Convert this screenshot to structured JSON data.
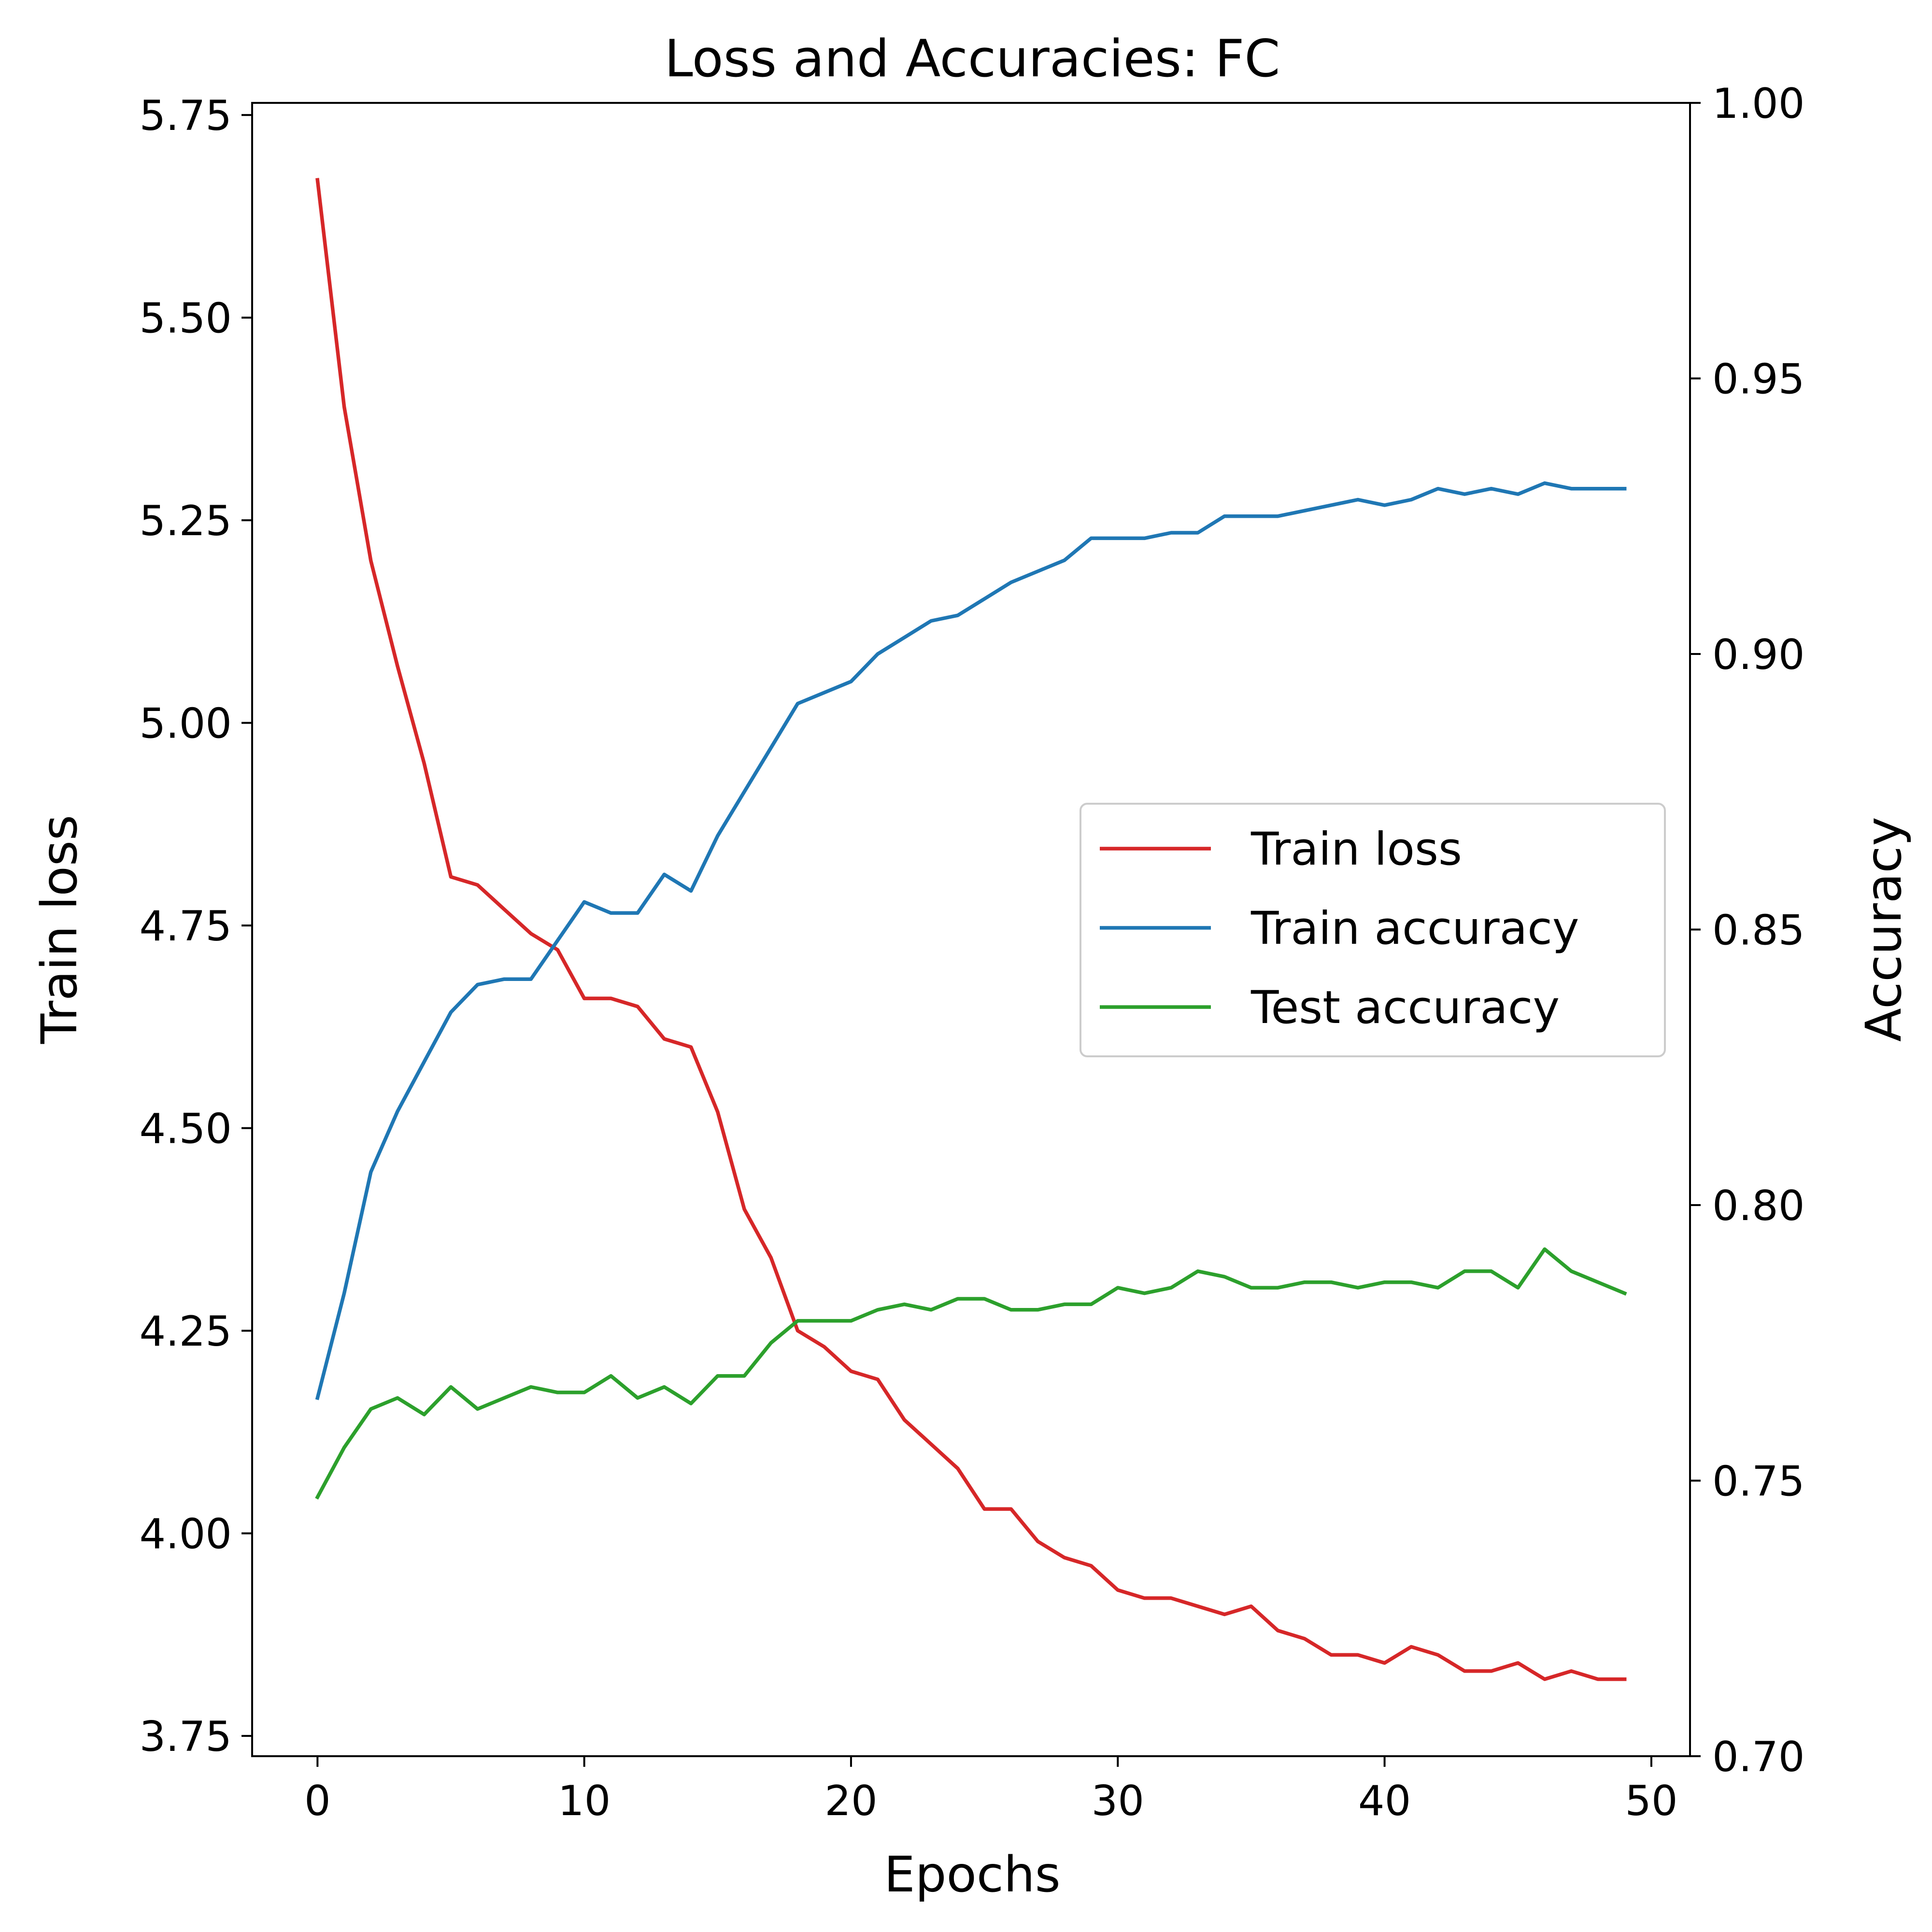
{
  "chart_data": {
    "type": "line",
    "title": "Loss and Accuracies: FC",
    "xlabel": "Epochs",
    "ylabel_left": "Train loss",
    "ylabel_right": "Accuracy",
    "xlim": [
      -2.45,
      51.45
    ],
    "ylim_left": [
      3.725,
      5.765
    ],
    "ylim_right": [
      0.7,
      1.0
    ],
    "x_ticks": [
      0,
      10,
      20,
      30,
      40,
      50
    ],
    "x_tick_labels": [
      "0",
      "10",
      "20",
      "30",
      "40",
      "50"
    ],
    "y_left_ticks": [
      3.75,
      4.0,
      4.25,
      4.5,
      4.75,
      5.0,
      5.25,
      5.5,
      5.75
    ],
    "y_left_tick_labels": [
      "3.75",
      "4.00",
      "4.25",
      "4.50",
      "4.75",
      "5.00",
      "5.25",
      "5.50",
      "5.75"
    ],
    "y_right_ticks": [
      0.7,
      0.75,
      0.8,
      0.85,
      0.9,
      0.95,
      1.0
    ],
    "y_right_tick_labels": [
      "0.70",
      "0.75",
      "0.80",
      "0.85",
      "0.90",
      "0.95",
      "1.00"
    ],
    "grid": false,
    "legend_position": "center-right",
    "x": [
      0,
      1,
      2,
      3,
      4,
      5,
      6,
      7,
      8,
      9,
      10,
      11,
      12,
      13,
      14,
      15,
      16,
      17,
      18,
      19,
      20,
      21,
      22,
      23,
      24,
      25,
      26,
      27,
      28,
      29,
      30,
      31,
      32,
      33,
      34,
      35,
      36,
      37,
      38,
      39,
      40,
      41,
      42,
      43,
      44,
      45,
      46,
      47,
      48,
      49
    ],
    "series": [
      {
        "name": "Train loss",
        "axis": "left",
        "color": "#d62728",
        "values": [
          5.67,
          5.39,
          5.2,
          5.07,
          4.95,
          4.81,
          4.8,
          4.77,
          4.74,
          4.72,
          4.66,
          4.66,
          4.65,
          4.61,
          4.6,
          4.52,
          4.4,
          4.34,
          4.25,
          4.23,
          4.2,
          4.19,
          4.14,
          4.11,
          4.08,
          4.03,
          4.03,
          3.99,
          3.97,
          3.96,
          3.93,
          3.92,
          3.92,
          3.91,
          3.9,
          3.91,
          3.88,
          3.87,
          3.85,
          3.85,
          3.84,
          3.86,
          3.85,
          3.83,
          3.83,
          3.84,
          3.82,
          3.83,
          3.82,
          3.82
        ]
      },
      {
        "name": "Train accuracy",
        "axis": "right",
        "color": "#1f77b4",
        "values": [
          0.765,
          0.784,
          0.806,
          0.817,
          0.826,
          0.835,
          0.84,
          0.841,
          0.841,
          0.848,
          0.855,
          0.853,
          0.853,
          0.86,
          0.857,
          0.867,
          0.875,
          0.883,
          0.891,
          0.893,
          0.895,
          0.9,
          0.903,
          0.906,
          0.907,
          0.91,
          0.913,
          0.915,
          0.917,
          0.921,
          0.921,
          0.921,
          0.922,
          0.922,
          0.925,
          0.925,
          0.925,
          0.926,
          0.927,
          0.928,
          0.927,
          0.928,
          0.93,
          0.929,
          0.93,
          0.929,
          0.931,
          0.93,
          0.93,
          0.93
        ]
      },
      {
        "name": "Test accuracy",
        "axis": "right",
        "color": "#2ca02c",
        "values": [
          0.747,
          0.756,
          0.763,
          0.765,
          0.762,
          0.767,
          0.763,
          0.765,
          0.767,
          0.766,
          0.766,
          0.769,
          0.765,
          0.767,
          0.764,
          0.769,
          0.769,
          0.775,
          0.779,
          0.779,
          0.779,
          0.781,
          0.782,
          0.781,
          0.783,
          0.783,
          0.781,
          0.781,
          0.782,
          0.782,
          0.785,
          0.784,
          0.785,
          0.788,
          0.787,
          0.785,
          0.785,
          0.786,
          0.786,
          0.785,
          0.786,
          0.786,
          0.785,
          0.788,
          0.788,
          0.785,
          0.792,
          0.788,
          0.786,
          0.784
        ]
      }
    ]
  }
}
